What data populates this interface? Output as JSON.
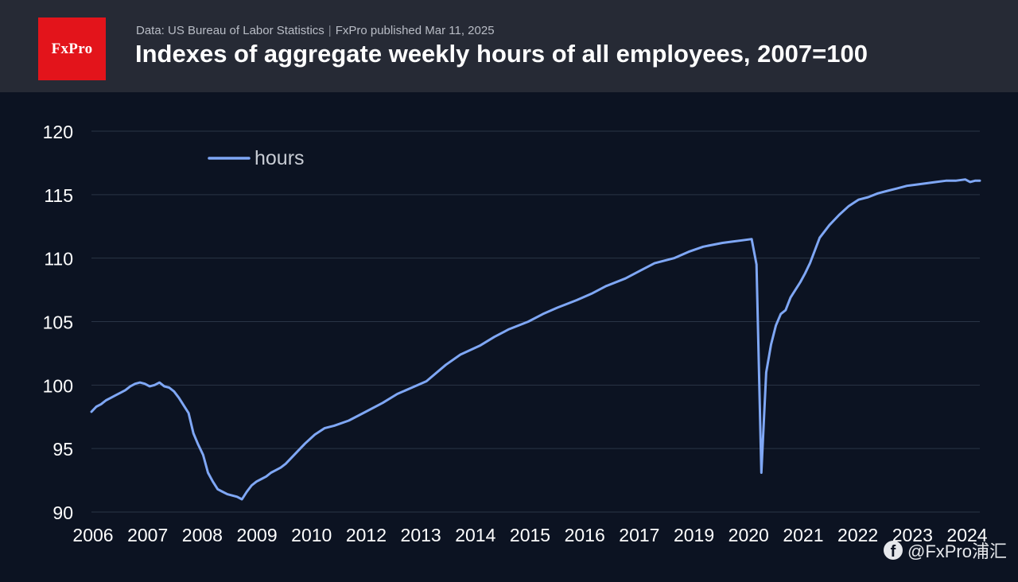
{
  "header": {
    "logo_text": "FxPro",
    "source": "Data: US Bureau of Labor Statistics",
    "separator": "|",
    "published": "FxPro published Mar 11, 2025",
    "title": "Indexes of aggregate weekly hours of all employees, 2007=100"
  },
  "watermark": {
    "icon": "facebook-icon",
    "icon_glyph": "f",
    "text": "@FxPro浦汇"
  },
  "colors": {
    "background": "#0c1322",
    "header_bg": "#262a35",
    "logo_bg": "#e3141b",
    "line": "#7fa7f5",
    "grid": "#2a3446",
    "tick_text": "#ffffff",
    "legend_text": "#c8ccd4"
  },
  "chart_data": {
    "type": "line",
    "title": "Indexes of aggregate weekly hours of all employees, 2007=100",
    "xlabel": "",
    "ylabel": "",
    "ylim": [
      90,
      120
    ],
    "xlim": [
      2006.0,
      2024.3
    ],
    "yticks": [
      90,
      95,
      100,
      105,
      110,
      115,
      120
    ],
    "xtick_labels": [
      "2006",
      "2007",
      "2008",
      "2009",
      "2010",
      "2012",
      "2013",
      "2014",
      "2015",
      "2016",
      "2017",
      "2019",
      "2020",
      "2021",
      "2022",
      "2023",
      "2024"
    ],
    "grid": true,
    "legend_position": "top-left",
    "series": [
      {
        "name": "hours",
        "x": [
          2006.0,
          2006.1,
          2006.2,
          2006.3,
          2006.4,
          2006.5,
          2006.6,
          2006.7,
          2006.8,
          2006.9,
          2007.0,
          2007.1,
          2007.2,
          2007.3,
          2007.4,
          2007.5,
          2007.6,
          2007.7,
          2007.8,
          2007.9,
          2008.0,
          2008.1,
          2008.2,
          2008.3,
          2008.4,
          2008.5,
          2008.6,
          2008.7,
          2008.8,
          2008.9,
          2009.0,
          2009.1,
          2009.2,
          2009.3,
          2009.4,
          2009.5,
          2009.6,
          2009.7,
          2009.8,
          2009.9,
          2010.0,
          2010.2,
          2010.4,
          2010.6,
          2010.8,
          2011.0,
          2011.3,
          2011.6,
          2012.0,
          2012.3,
          2012.6,
          2012.9,
          2013.3,
          2013.6,
          2014.0,
          2014.3,
          2014.6,
          2015.0,
          2015.3,
          2015.6,
          2016.0,
          2016.3,
          2016.6,
          2017.0,
          2017.3,
          2017.6,
          2018.0,
          2018.3,
          2018.6,
          2019.0,
          2019.2,
          2019.4,
          2019.6,
          2019.7,
          2019.8,
          2019.9,
          2020.0,
          2020.1,
          2020.2,
          2020.3,
          2020.4,
          2020.5,
          2020.6,
          2020.7,
          2020.8,
          2020.9,
          2021.0,
          2021.2,
          2021.4,
          2021.6,
          2021.8,
          2022.0,
          2022.2,
          2022.4,
          2022.6,
          2022.8,
          2023.0,
          2023.2,
          2023.4,
          2023.6,
          2023.8,
          2024.0,
          2024.1,
          2024.2,
          2024.3
        ],
        "values": [
          97.9,
          98.3,
          98.5,
          98.8,
          99.0,
          99.2,
          99.4,
          99.6,
          99.9,
          100.1,
          100.2,
          100.1,
          99.9,
          100.0,
          100.2,
          99.9,
          99.8,
          99.5,
          99.0,
          98.4,
          97.8,
          96.2,
          95.3,
          94.5,
          93.1,
          92.4,
          91.8,
          91.6,
          91.4,
          91.3,
          91.2,
          91.0,
          91.6,
          92.1,
          92.4,
          92.6,
          92.8,
          93.1,
          93.3,
          93.5,
          93.8,
          94.6,
          95.4,
          96.1,
          96.6,
          96.8,
          97.2,
          97.8,
          98.6,
          99.3,
          99.8,
          100.3,
          101.6,
          102.4,
          103.1,
          103.8,
          104.4,
          105.0,
          105.6,
          106.1,
          106.7,
          107.2,
          107.8,
          108.4,
          109.0,
          109.6,
          110.0,
          110.5,
          110.9,
          111.2,
          111.3,
          111.4,
          111.5,
          109.5,
          93.1,
          101.0,
          103.2,
          104.7,
          105.6,
          105.9,
          106.9,
          107.5,
          108.1,
          108.8,
          109.6,
          110.6,
          111.6,
          112.6,
          113.4,
          114.1,
          114.6,
          114.8,
          115.1,
          115.3,
          115.5,
          115.7,
          115.8,
          115.9,
          116.0,
          116.1,
          116.1,
          116.2,
          116.0,
          116.1,
          116.1
        ]
      }
    ]
  }
}
